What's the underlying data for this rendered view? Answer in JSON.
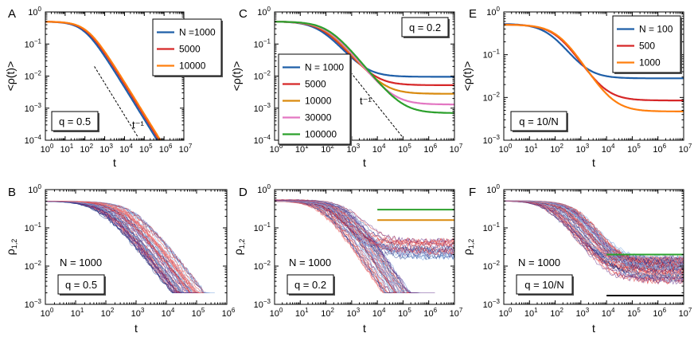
{
  "figure": {
    "panels": [
      {
        "id": "A",
        "letter": "A",
        "ylabel": "<ρ(t)>",
        "xlabel": "t",
        "annotation": "q = 0.5",
        "slope_label": "t⁻¹"
      },
      {
        "id": "C",
        "letter": "C",
        "ylabel": "<ρ(t)>",
        "xlabel": "t",
        "annotation": "q = 0.2",
        "slope_label": "t⁻¹"
      },
      {
        "id": "E",
        "letter": "E",
        "ylabel": "<ρ(t)>",
        "xlabel": "t",
        "annotation": "q = 10/N"
      },
      {
        "id": "B",
        "letter": "B",
        "ylabel": "ρ1,2",
        "xlabel": "t",
        "annotation": "q = 0.5",
        "n_label": "N  = 1000"
      },
      {
        "id": "D",
        "letter": "D",
        "ylabel": "ρ1,2",
        "xlabel": "t",
        "annotation": "q = 0.2",
        "n_label": "N  = 1000"
      },
      {
        "id": "F",
        "letter": "F",
        "ylabel": "ρ1,2",
        "xlabel": "t",
        "annotation": "q = 10/N",
        "n_label": "N  = 1000"
      }
    ]
  },
  "chart_data": [
    {
      "panel": "A",
      "type": "line",
      "xscale": "log",
      "yscale": "log",
      "xlim": [
        1,
        10000000
      ],
      "ylim": [
        0.0001,
        1
      ],
      "x_ticks": [
        "10^0",
        "10^1",
        "10^2",
        "10^3",
        "10^4",
        "10^5",
        "10^6",
        "10^7"
      ],
      "y_ticks": [
        "10^0",
        "10^-1",
        "10^-2",
        "10^-3",
        "10^-4"
      ],
      "title": "",
      "xlabel": "t",
      "ylabel": "<ρ(t)>",
      "legend": {
        "placement": "top-right",
        "entries": [
          "N =1000",
          "5000",
          "10000"
        ]
      },
      "series": [
        {
          "name": "N =1000",
          "color": "#1f5fa8",
          "tc": 90,
          "plateau": 0.5,
          "floor": 0
        },
        {
          "name": "5000",
          "color": "#d62728",
          "tc": 115,
          "plateau": 0.5,
          "floor": 0
        },
        {
          "name": "10000",
          "color": "#ff7f0e",
          "tc": 130,
          "plateau": 0.5,
          "floor": 0
        }
      ],
      "reference_line": {
        "label": "t⁻¹",
        "slope": -1,
        "x": [
          300,
          50000
        ],
        "y": [
          0.02,
          0.00012
        ]
      },
      "annotation": "q = 0.5"
    },
    {
      "panel": "C",
      "type": "line",
      "xscale": "log",
      "yscale": "log",
      "xlim": [
        1,
        10000000
      ],
      "ylim": [
        0.0001,
        1
      ],
      "x_ticks": [
        "10^0",
        "10^1",
        "10^2",
        "10^3",
        "10^4",
        "10^5",
        "10^6",
        "10^7"
      ],
      "y_ticks": [
        "10^0",
        "10^-1",
        "10^-2",
        "10^-3",
        "10^-4"
      ],
      "title": "",
      "xlabel": "t",
      "ylabel": "<ρ(t)>",
      "legend": {
        "placement": "center-left",
        "entries": [
          "N = 1000",
          "5000",
          "10000",
          "30000",
          "100000"
        ]
      },
      "series": [
        {
          "name": "N = 1000",
          "color": "#1f5fa8",
          "tc": 60,
          "plateau": 0.5,
          "floor": 0.0095
        },
        {
          "name": "5000",
          "color": "#d62728",
          "tc": 80,
          "plateau": 0.5,
          "floor": 0.0052
        },
        {
          "name": "10000",
          "color": "#d98a0e",
          "tc": 95,
          "plateau": 0.5,
          "floor": 0.0028
        },
        {
          "name": "30000",
          "color": "#e377c2",
          "tc": 110,
          "plateau": 0.5,
          "floor": 0.0013
        },
        {
          "name": "100000",
          "color": "#2ca02c",
          "tc": 130,
          "plateau": 0.5,
          "floor": 0.0007
        }
      ],
      "reference_line": {
        "label": "t⁻¹",
        "slope": -1,
        "x": [
          300,
          100000
        ],
        "y": [
          0.04,
          0.00012
        ]
      },
      "annotation": "q = 0.2"
    },
    {
      "panel": "E",
      "type": "line",
      "xscale": "log",
      "yscale": "log",
      "xlim": [
        1,
        10000000
      ],
      "ylim": [
        0.001,
        1
      ],
      "x_ticks": [
        "10^0",
        "10^1",
        "10^2",
        "10^3",
        "10^4",
        "10^5",
        "10^6",
        "10^7"
      ],
      "y_ticks": [
        "10^0",
        "10^-1",
        "10^-2",
        "10^-3"
      ],
      "title": "",
      "xlabel": "t",
      "ylabel": "<ρ(t)>",
      "legend": {
        "placement": "top-right",
        "entries": [
          "N = 100",
          "500",
          "1000"
        ]
      },
      "series": [
        {
          "name": "N = 100",
          "color": "#1f5fa8",
          "tc": 70,
          "plateau": 0.5,
          "floor": 0.028
        },
        {
          "name": "500",
          "color": "#d62728",
          "tc": 130,
          "plateau": 0.5,
          "floor": 0.0085
        },
        {
          "name": "1000",
          "color": "#ff7f0e",
          "tc": 150,
          "plateau": 0.5,
          "floor": 0.0047
        }
      ],
      "annotation": "q = 10/N"
    },
    {
      "panel": "B",
      "type": "line",
      "xscale": "log",
      "yscale": "log",
      "xlim": [
        1,
        1000000
      ],
      "ylim": [
        0.001,
        1
      ],
      "x_ticks": [
        "10^0",
        "10^1",
        "10^2",
        "10^3",
        "10^4",
        "10^5",
        "10^6"
      ],
      "y_ticks": [
        "10^0",
        "10^-1",
        "10^-2",
        "10^-3"
      ],
      "title": "",
      "xlabel": "t",
      "ylabel": "ρ1,2",
      "n_label": "N  = 1000",
      "annotation": "q = 0.5",
      "trajectory_colors": [
        "#1f3d8c",
        "#d62728",
        "#8fb4e3",
        "#f08080",
        "#5b2a86"
      ],
      "ensemble": {
        "n_traj": 70,
        "plateau": 0.5,
        "tc_range": [
          60,
          800
        ],
        "absorbing": 0.002
      }
    },
    {
      "panel": "D",
      "type": "line",
      "xscale": "log",
      "yscale": "log",
      "xlim": [
        1,
        10000000
      ],
      "ylim": [
        0.001,
        1
      ],
      "x_ticks": [
        "10^0",
        "10^1",
        "10^2",
        "10^3",
        "10^4",
        "10^5",
        "10^6",
        "10^7"
      ],
      "y_ticks": [
        "10^0",
        "10^-1",
        "10^-2",
        "10^-3"
      ],
      "title": "",
      "xlabel": "t",
      "ylabel": "ρ1,2",
      "n_label": "N  = 1000",
      "annotation": "q = 0.2",
      "trajectory_colors": [
        "#1f3d8c",
        "#d62728",
        "#8fb4e3",
        "#f08080",
        "#5b2a86"
      ],
      "ensemble": {
        "n_traj": 70,
        "plateau": 0.5,
        "tc_range": [
          60,
          800
        ],
        "absorbing": 0.002
      },
      "horizontal_levels": [
        {
          "color": "#2ca02c",
          "y": 0.3,
          "x_start": 10000
        },
        {
          "color": "#d98a0e",
          "y": 0.16,
          "x_start": 10000
        }
      ]
    },
    {
      "panel": "F",
      "type": "line",
      "xscale": "log",
      "yscale": "log",
      "xlim": [
        1,
        10000000
      ],
      "ylim": [
        0.001,
        1
      ],
      "x_ticks": [
        "10^0",
        "10^1",
        "10^2",
        "10^3",
        "10^4",
        "10^5",
        "10^6",
        "10^7"
      ],
      "y_ticks": [
        "10^0",
        "10^-1",
        "10^-2",
        "10^-3"
      ],
      "title": "",
      "xlabel": "t",
      "ylabel": "ρ1,2",
      "n_label": "N  = 1000",
      "annotation": "q = 10/N",
      "trajectory_colors": [
        "#1f3d8c",
        "#d62728",
        "#8fb4e3",
        "#f08080",
        "#5b2a86"
      ],
      "ensemble": {
        "n_traj": 70,
        "plateau": 0.5,
        "tc_range": [
          60,
          800
        ],
        "absorbing": 0.0025
      },
      "horizontal_levels": [
        {
          "color": "#2ca02c",
          "y": 0.02,
          "x_start": 10000
        },
        {
          "color": "#000000",
          "y": 0.0017,
          "x_start": 10000
        }
      ]
    }
  ]
}
